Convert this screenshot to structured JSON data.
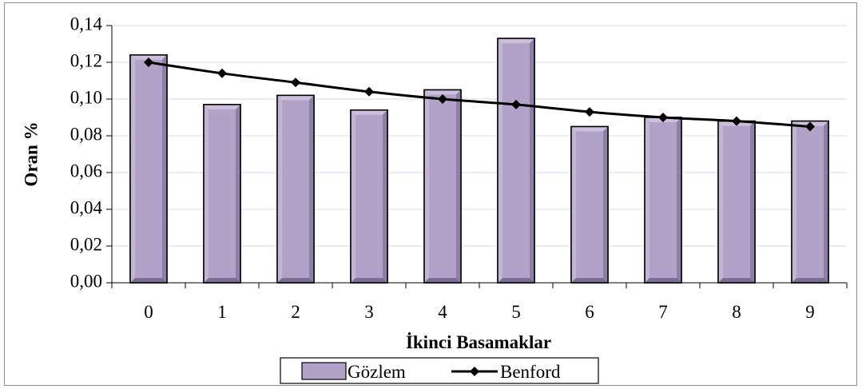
{
  "chart_data": {
    "type": "bar",
    "categories": [
      "0",
      "1",
      "2",
      "3",
      "4",
      "5",
      "6",
      "7",
      "8",
      "9"
    ],
    "series": [
      {
        "name": "Gözlem",
        "type": "bar",
        "color": "#b3a2c7",
        "values": [
          0.124,
          0.097,
          0.102,
          0.094,
          0.105,
          0.133,
          0.085,
          0.09,
          0.088,
          0.088
        ]
      },
      {
        "name": "Benford",
        "type": "line",
        "color": "#000000",
        "marker": "diamond",
        "values": [
          0.12,
          0.114,
          0.109,
          0.104,
          0.1,
          0.097,
          0.093,
          0.09,
          0.088,
          0.085
        ]
      }
    ],
    "xlabel": "İkinci Basamaklar",
    "ylabel": "Oran  %",
    "ylim": [
      0,
      0.14
    ],
    "yticks": [
      "0,00",
      "0,02",
      "0,04",
      "0,06",
      "0,08",
      "0,10",
      "0,12",
      "0,14"
    ],
    "grid": true,
    "legend_position": "bottom"
  }
}
